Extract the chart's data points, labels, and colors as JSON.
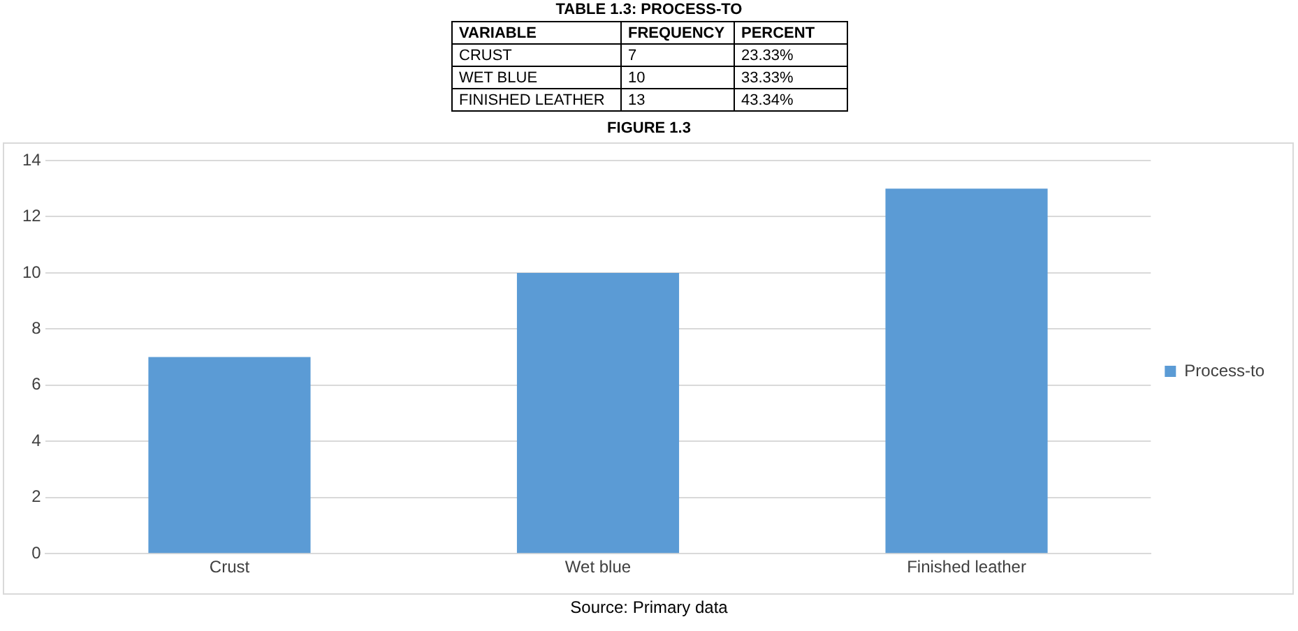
{
  "chart_data": [
    {
      "type": "other",
      "title": "TABLE 1.3: PROCESS-TO",
      "xlabel": "VARIABLE",
      "categories": [
        "CRUST",
        "WET BLUE",
        "FINISHED LEATHER"
      ],
      "series": [
        {
          "name": "FREQUENCY",
          "values": [
            7,
            10,
            13
          ]
        },
        {
          "name": "PERCENT",
          "values": [
            23.33,
            33.33,
            43.34
          ],
          "value_labels": [
            "23.33%",
            "33.33%",
            "43.34%"
          ]
        }
      ],
      "data_labels": true
    },
    {
      "type": "bar",
      "title": "FIGURE 1.3",
      "categories": [
        "Crust",
        "Wet blue",
        "Finished leather"
      ],
      "series": [
        {
          "name": "Process-to",
          "color": "#5b9bd5",
          "values": [
            7,
            10,
            13
          ]
        }
      ],
      "ylim": [
        0,
        14
      ],
      "yticks": [
        0,
        2,
        4,
        6,
        8,
        10,
        12,
        14
      ],
      "grid": "y",
      "legend": "right",
      "annotations": [
        "Source: Primary data"
      ]
    }
  ]
}
